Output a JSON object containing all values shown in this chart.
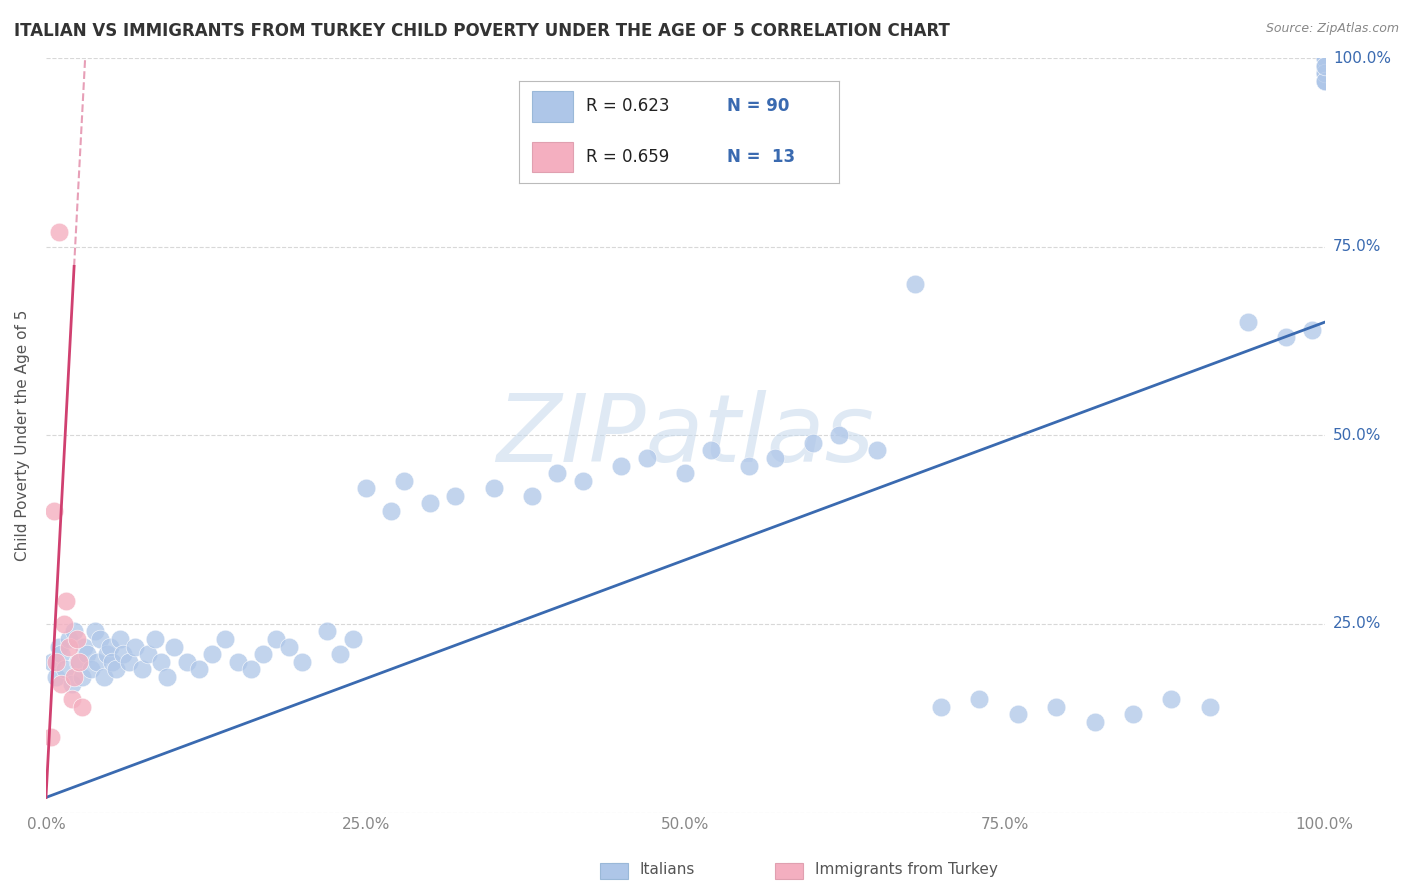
{
  "title": "ITALIAN VS IMMIGRANTS FROM TURKEY CHILD POVERTY UNDER THE AGE OF 5 CORRELATION CHART",
  "source": "Source: ZipAtlas.com",
  "ylabel": "Child Poverty Under the Age of 5",
  "watermark": "ZIPatlas",
  "legend_italian_R": "0.623",
  "legend_italian_N": "90",
  "legend_turkey_R": "0.659",
  "legend_turkey_N": "13",
  "italian_color": "#aec6e8",
  "turkey_color": "#f4afc0",
  "italian_line_color": "#3a6ab0",
  "turkey_line_color": "#d04070",
  "background_color": "#ffffff",
  "grid_color": "#d8d8d8",
  "right_label_color": "#3a6ab0",
  "title_color": "#333333",
  "source_color": "#888888",
  "tick_color": "#888888",
  "ylabel_color": "#555555",
  "legend_text_color": "#222222",
  "legend_N_color": "#3a6ab0",
  "bottom_legend_color": "#555555",
  "xlim": [
    0,
    1
  ],
  "ylim": [
    0,
    1
  ],
  "italian_scatter_x": [
    0.005,
    0.008,
    0.01,
    0.012,
    0.015,
    0.018,
    0.02,
    0.022,
    0.025,
    0.028,
    0.03,
    0.032,
    0.035,
    0.038,
    0.04,
    0.042,
    0.045,
    0.048,
    0.05,
    0.052,
    0.055,
    0.058,
    0.06,
    0.065,
    0.07,
    0.075,
    0.08,
    0.085,
    0.09,
    0.095,
    0.1,
    0.11,
    0.12,
    0.13,
    0.14,
    0.15,
    0.16,
    0.17,
    0.18,
    0.19,
    0.2,
    0.22,
    0.23,
    0.24,
    0.25,
    0.27,
    0.28,
    0.3,
    0.32,
    0.35,
    0.38,
    0.4,
    0.42,
    0.45,
    0.47,
    0.5,
    0.52,
    0.55,
    0.57,
    0.6,
    0.62,
    0.65,
    0.68,
    0.7,
    0.73,
    0.76,
    0.79,
    0.82,
    0.85,
    0.88,
    0.91,
    0.94,
    0.97,
    0.99,
    1.0,
    1.0,
    1.0,
    1.0,
    1.0,
    1.0,
    1.0,
    1.0,
    1.0,
    1.0,
    1.0,
    1.0,
    1.0,
    1.0,
    1.0,
    1.0
  ],
  "italian_scatter_y": [
    0.2,
    0.18,
    0.22,
    0.21,
    0.19,
    0.23,
    0.17,
    0.24,
    0.2,
    0.18,
    0.22,
    0.21,
    0.19,
    0.24,
    0.2,
    0.23,
    0.18,
    0.21,
    0.22,
    0.2,
    0.19,
    0.23,
    0.21,
    0.2,
    0.22,
    0.19,
    0.21,
    0.23,
    0.2,
    0.18,
    0.22,
    0.2,
    0.19,
    0.21,
    0.23,
    0.2,
    0.19,
    0.21,
    0.23,
    0.22,
    0.2,
    0.24,
    0.21,
    0.23,
    0.43,
    0.4,
    0.44,
    0.41,
    0.42,
    0.43,
    0.42,
    0.45,
    0.44,
    0.46,
    0.47,
    0.45,
    0.48,
    0.46,
    0.47,
    0.49,
    0.5,
    0.48,
    0.7,
    0.14,
    0.15,
    0.13,
    0.14,
    0.12,
    0.13,
    0.15,
    0.14,
    0.65,
    0.63,
    0.64,
    0.98,
    0.99,
    0.97,
    0.99,
    1.0,
    0.98,
    0.97,
    0.99,
    1.0,
    0.98,
    0.97,
    0.99,
    1.0,
    0.98,
    0.97,
    0.99
  ],
  "turkey_scatter_x": [
    0.004,
    0.006,
    0.008,
    0.01,
    0.012,
    0.014,
    0.016,
    0.018,
    0.02,
    0.022,
    0.024,
    0.026,
    0.028
  ],
  "turkey_scatter_y": [
    0.1,
    0.4,
    0.2,
    0.77,
    0.17,
    0.25,
    0.28,
    0.22,
    0.15,
    0.18,
    0.23,
    0.2,
    0.14
  ],
  "italian_reg": [
    0.0,
    0.02,
    1.0,
    0.65
  ],
  "turkey_reg_solid": [
    0.0,
    0.02,
    0.022,
    0.77
  ],
  "turkey_reg_dashed": [
    0.0,
    0.02,
    0.0,
    0.8
  ],
  "turkey_line_slope": 32.0,
  "turkey_line_intercept": 0.02,
  "italian_line_slope": 0.63,
  "italian_line_intercept": 0.02
}
